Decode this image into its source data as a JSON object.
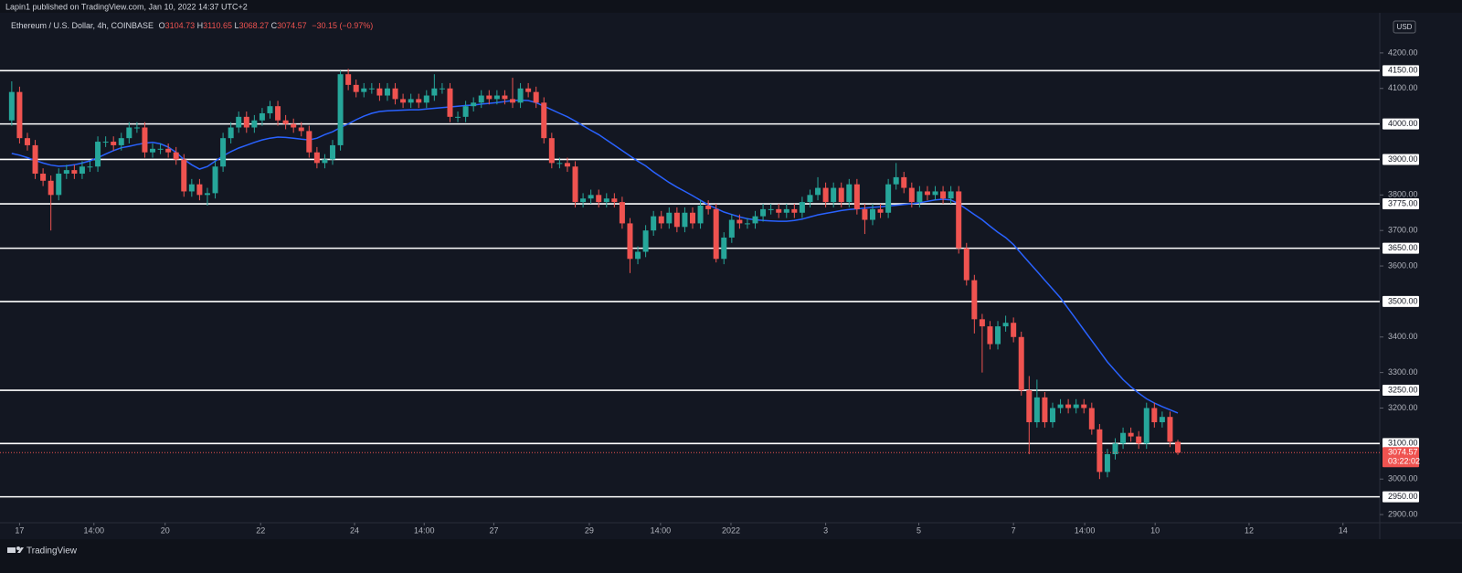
{
  "header": "Lapin1 published on TradingView.com, Jan 10, 2022 14:37 UTC+2",
  "footer": "TradingView",
  "chart_data": {
    "type": "candlestick",
    "title": "Ethereum / U.S. Dollar, 4h, COINBASE",
    "ohlc_prefixes": [
      "O",
      "H",
      "L",
      "C"
    ],
    "change": "−30.15 (−0.97%)",
    "currency": "USD",
    "countdown": "03:22:02",
    "up_color": "#26a69a",
    "down_color": "#ef5350",
    "open": [
      4010,
      4090,
      3960,
      3940,
      3860,
      3840,
      3800,
      3860,
      3870,
      3860,
      3880,
      3880,
      3950,
      3950,
      3940,
      3960,
      3990,
      3990,
      3920,
      3930,
      3930,
      3920,
      3900,
      3810,
      3830,
      3800,
      3805,
      3880,
      3960,
      3990,
      4020,
      3990,
      4010,
      4030,
      4050,
      4010,
      4000,
      3990,
      3980,
      3920,
      3890,
      3900,
      3940,
      4140,
      4110,
      4090,
      4100,
      4100,
      4080,
      4100,
      4070,
      4060,
      4070,
      4060,
      4080,
      4100,
      4100,
      4020,
      4020,
      4050,
      4060,
      4080,
      4070,
      4080,
      4070,
      4060,
      4100,
      4090,
      4060,
      3960,
      3890,
      3890,
      3880,
      3780,
      3790,
      3800,
      3780,
      3790,
      3780,
      3720,
      3620,
      3640,
      3700,
      3740,
      3720,
      3750,
      3710,
      3750,
      3720,
      3770,
      3760,
      3620,
      3680,
      3730,
      3720,
      3720,
      3740,
      3760,
      3760,
      3750,
      3760,
      3750,
      3780,
      3800,
      3820,
      3780,
      3820,
      3780,
      3830,
      3760,
      3730,
      3760,
      3750,
      3830,
      3850,
      3820,
      3780,
      3810,
      3800,
      3810,
      3790,
      3810,
      3650,
      3560,
      3450,
      3430,
      3380,
      3430,
      3440,
      3400,
      3250,
      3160,
      3230,
      3160,
      3200,
      3210,
      3200,
      3210,
      3200,
      3140,
      3020,
      3070,
      3100,
      3130,
      3120,
      3100,
      3200,
      3160,
      3175,
      3104.73
    ],
    "high": [
      4120,
      4105,
      3975,
      3955,
      3875,
      3855,
      3875,
      3885,
      3885,
      3895,
      3895,
      3965,
      3965,
      3965,
      3975,
      4005,
      4005,
      4005,
      3945,
      3945,
      3945,
      3935,
      3915,
      3845,
      3845,
      3820,
      3895,
      3975,
      4005,
      4035,
      4035,
      4025,
      4045,
      4065,
      4065,
      4025,
      4015,
      4005,
      3995,
      3935,
      3915,
      3955,
      4150,
      4155,
      4125,
      4115,
      4115,
      4115,
      4115,
      4115,
      4085,
      4085,
      4085,
      4095,
      4140,
      4115,
      4115,
      4035,
      4065,
      4075,
      4095,
      4095,
      4095,
      4095,
      4130,
      4115,
      4115,
      4105,
      4075,
      3975,
      3905,
      3905,
      3895,
      3805,
      3815,
      3815,
      3805,
      3805,
      3795,
      3735,
      3655,
      3715,
      3755,
      3755,
      3765,
      3765,
      3765,
      3765,
      3785,
      3785,
      3775,
      3695,
      3745,
      3745,
      3735,
      3755,
      3775,
      3775,
      3775,
      3775,
      3775,
      3795,
      3815,
      3850,
      3835,
      3835,
      3835,
      3845,
      3845,
      3775,
      3775,
      3775,
      3845,
      3890,
      3865,
      3835,
      3825,
      3825,
      3825,
      3825,
      3825,
      3825,
      3665,
      3575,
      3465,
      3445,
      3445,
      3460,
      3455,
      3415,
      3290,
      3280,
      3245,
      3215,
      3225,
      3225,
      3225,
      3225,
      3215,
      3155,
      3085,
      3115,
      3145,
      3145,
      3135,
      3215,
      3215,
      3190,
      3190,
      3110.65
    ],
    "low": [
      3995,
      3945,
      3925,
      3845,
      3825,
      3700,
      3785,
      3845,
      3845,
      3845,
      3865,
      3865,
      3935,
      3925,
      3925,
      3945,
      3975,
      3905,
      3905,
      3915,
      3905,
      3885,
      3795,
      3795,
      3785,
      3770,
      3790,
      3865,
      3945,
      3975,
      3975,
      3975,
      3995,
      4015,
      3995,
      3985,
      3975,
      3965,
      3905,
      3875,
      3875,
      3885,
      3925,
      4095,
      4075,
      4075,
      4085,
      4065,
      4065,
      4055,
      4045,
      4045,
      4045,
      4045,
      4065,
      4085,
      4005,
      4005,
      4005,
      4035,
      4045,
      4055,
      4055,
      4055,
      4045,
      4045,
      4075,
      4045,
      3945,
      3875,
      3875,
      3865,
      3765,
      3765,
      3775,
      3765,
      3765,
      3765,
      3705,
      3580,
      3605,
      3625,
      3685,
      3705,
      3705,
      3695,
      3695,
      3705,
      3705,
      3745,
      3610,
      3605,
      3665,
      3705,
      3705,
      3705,
      3725,
      3745,
      3735,
      3735,
      3735,
      3735,
      3765,
      3785,
      3765,
      3765,
      3765,
      3765,
      3745,
      3690,
      3715,
      3735,
      3735,
      3815,
      3805,
      3765,
      3765,
      3785,
      3785,
      3775,
      3775,
      3635,
      3545,
      3410,
      3300,
      3365,
      3365,
      3415,
      3385,
      3235,
      3070,
      3145,
      3145,
      3145,
      3185,
      3185,
      3185,
      3185,
      3125,
      3000,
      3005,
      3055,
      3085,
      3105,
      3085,
      3085,
      3145,
      3145,
      3090,
      3068.27
    ],
    "close": [
      4090,
      3960,
      3940,
      3860,
      3840,
      3800,
      3860,
      3870,
      3860,
      3880,
      3880,
      3950,
      3950,
      3940,
      3960,
      3990,
      3990,
      3920,
      3930,
      3930,
      3920,
      3900,
      3810,
      3830,
      3800,
      3805,
      3880,
      3960,
      3990,
      4020,
      3990,
      4010,
      4030,
      4050,
      4010,
      4000,
      3990,
      3980,
      3920,
      3890,
      3900,
      3940,
      4140,
      4110,
      4090,
      4100,
      4100,
      4080,
      4100,
      4070,
      4060,
      4070,
      4060,
      4080,
      4100,
      4100,
      4020,
      4020,
      4050,
      4060,
      4080,
      4070,
      4080,
      4070,
      4060,
      4100,
      4090,
      4060,
      3960,
      3890,
      3890,
      3880,
      3780,
      3790,
      3800,
      3780,
      3790,
      3780,
      3720,
      3620,
      3640,
      3700,
      3740,
      3720,
      3750,
      3710,
      3750,
      3720,
      3770,
      3760,
      3620,
      3680,
      3730,
      3720,
      3720,
      3740,
      3760,
      3760,
      3750,
      3760,
      3750,
      3780,
      3800,
      3820,
      3780,
      3820,
      3780,
      3830,
      3760,
      3730,
      3760,
      3750,
      3830,
      3850,
      3820,
      3780,
      3810,
      3800,
      3810,
      3790,
      3810,
      3650,
      3560,
      3450,
      3430,
      3380,
      3430,
      3440,
      3400,
      3250,
      3160,
      3230,
      3160,
      3200,
      3210,
      3200,
      3210,
      3200,
      3140,
      3020,
      3070,
      3100,
      3130,
      3120,
      3100,
      3200,
      3160,
      3175,
      3105,
      3074.57
    ],
    "ma": {
      "color": "#2962ff",
      "values": [
        3917,
        3912,
        3905,
        3897,
        3890,
        3884,
        3881,
        3882,
        3885,
        3890,
        3896,
        3905,
        3915,
        3925,
        3933,
        3937,
        3942,
        3946,
        3948,
        3944,
        3935,
        3920,
        3900,
        3885,
        3873,
        3880,
        3895,
        3910,
        3922,
        3932,
        3940,
        3948,
        3955,
        3960,
        3963,
        3962,
        3960,
        3957,
        3955,
        3960,
        3970,
        3978,
        3990,
        4000,
        4012,
        4022,
        4030,
        4035,
        4037,
        4038,
        4039,
        4040,
        4040,
        4042,
        4044,
        4046,
        4048,
        4050,
        4052,
        4053,
        4056,
        4058,
        4060,
        4063,
        4066,
        4067,
        4066,
        4060,
        4050,
        4040,
        4030,
        4020,
        4008,
        3995,
        3982,
        3970,
        3955,
        3940,
        3925,
        3910,
        3895,
        3882,
        3865,
        3850,
        3835,
        3822,
        3810,
        3798,
        3785,
        3772,
        3762,
        3752,
        3745,
        3738,
        3733,
        3730,
        3728,
        3727,
        3726,
        3726,
        3728,
        3732,
        3738,
        3744,
        3748,
        3752,
        3756,
        3759,
        3761,
        3763,
        3765,
        3767,
        3769,
        3771,
        3773,
        3775,
        3778,
        3782,
        3786,
        3788,
        3786,
        3775,
        3760,
        3745,
        3730,
        3712,
        3695,
        3680,
        3660,
        3635,
        3610,
        3585,
        3560,
        3535,
        3510,
        3480,
        3450,
        3420,
        3390,
        3360,
        3330,
        3305,
        3280,
        3260,
        3242,
        3226,
        3214,
        3204,
        3195,
        3186
      ]
    },
    "levels": [
      {
        "value": 4150,
        "label": "4150.00"
      },
      {
        "value": 4000,
        "label": "4000.00"
      },
      {
        "value": 3900,
        "label": "3900.00"
      },
      {
        "value": 3775,
        "label": "3775.00"
      },
      {
        "value": 3650,
        "label": "3650.00"
      },
      {
        "value": 3500,
        "label": "3500.00"
      },
      {
        "value": 3250,
        "label": "3250.00"
      },
      {
        "value": 3100,
        "label": "3100.00"
      },
      {
        "value": 2950,
        "label": "2950.00"
      }
    ],
    "xlim": [
      -1.5,
      174.8
    ],
    "xticks": [
      {
        "value": 1,
        "label": "17"
      },
      {
        "value": 10.5,
        "label": "14:00"
      },
      {
        "value": 19.6,
        "label": "20"
      },
      {
        "value": 31.8,
        "label": "22"
      },
      {
        "value": 43.8,
        "label": "24"
      },
      {
        "value": 52.7,
        "label": "14:00"
      },
      {
        "value": 61.6,
        "label": "27"
      },
      {
        "value": 73.8,
        "label": "29"
      },
      {
        "value": 82.9,
        "label": "14:00"
      },
      {
        "value": 91.9,
        "label": "2022"
      },
      {
        "value": 104,
        "label": "3"
      },
      {
        "value": 115.9,
        "label": "5"
      },
      {
        "value": 128,
        "label": "7"
      },
      {
        "value": 137.1,
        "label": "14:00"
      },
      {
        "value": 146.1,
        "label": "10"
      },
      {
        "value": 158.1,
        "label": "12"
      },
      {
        "value": 170.1,
        "label": "14"
      }
    ],
    "ylim": [
      2877,
      4349
    ],
    "yticks": [
      {
        "value": 4200,
        "label": "4200.00"
      },
      {
        "value": 4100,
        "label": "4100.00"
      },
      {
        "value": 3800,
        "label": "3800.00"
      },
      {
        "value": 3700,
        "label": "3700.00"
      },
      {
        "value": 3600,
        "label": "3600.00"
      },
      {
        "value": 3400,
        "label": "3400.00"
      },
      {
        "value": 3300,
        "label": "3300.00"
      },
      {
        "value": 3200,
        "label": "3200.00"
      },
      {
        "value": 3000,
        "label": "3000.00"
      },
      {
        "value": 2900,
        "label": "2900.00"
      }
    ]
  }
}
